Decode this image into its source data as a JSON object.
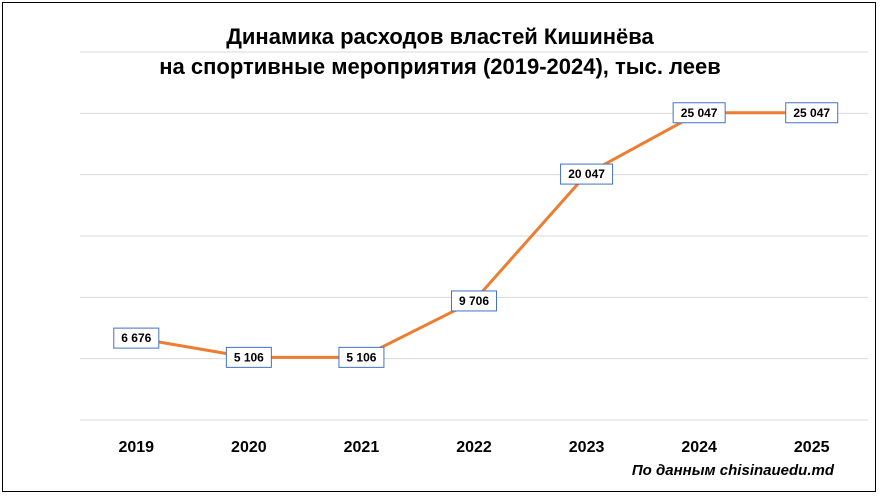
{
  "chart_data": {
    "type": "line",
    "title": "Динамика расходов властей Кишинёва",
    "subtitle": "на спортивные мероприятия (2019-2024), тыс. леев",
    "categories": [
      "2019",
      "2020",
      "2021",
      "2022",
      "2023",
      "2024",
      "2025"
    ],
    "series": [
      {
        "values": [
          6676,
          5106,
          5106,
          9706,
          20047,
          25047,
          25047
        ],
        "labels": [
          "6 676",
          "5 106",
          "5 106",
          "9 706",
          "20 047",
          "25 047",
          "25 047"
        ],
        "color": "#ED7D31"
      }
    ],
    "ylim": [
      0,
      30000
    ],
    "grid": true,
    "label_border_color": "#4472C4"
  },
  "source": "По данным chisinauedu.md"
}
